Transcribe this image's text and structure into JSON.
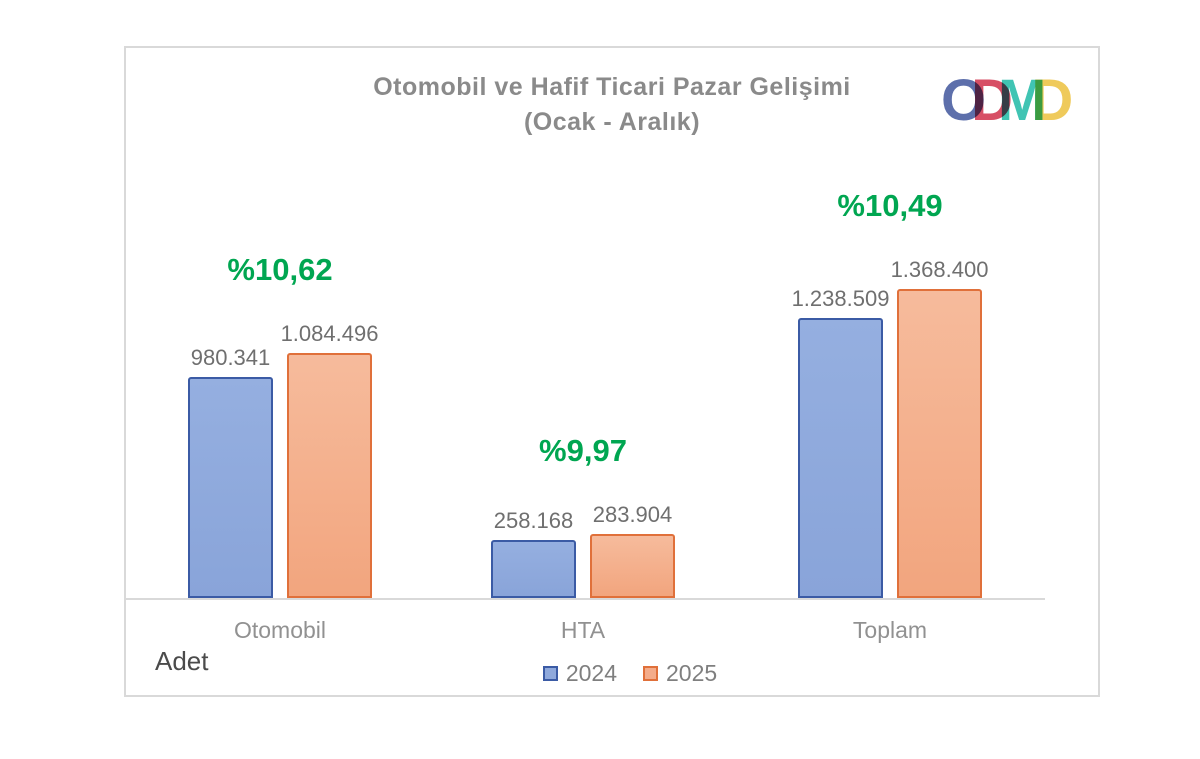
{
  "chart": {
    "title": "Otomobil ve Hafif Ticari Pazar Gelişimi",
    "subtitle": "(Ocak - Aralık)",
    "unit_label": "Adet"
  },
  "logo": {
    "name": "ODMD",
    "letters": [
      {
        "char": "O",
        "color": "#4F63A4"
      },
      {
        "char": "D",
        "color": "#D44058"
      },
      {
        "char": "M",
        "color": "#2FBFAD"
      },
      {
        "char": "D",
        "color": "#EEC64D"
      }
    ]
  },
  "chart_data": {
    "type": "bar",
    "title": "Otomobil ve Hafif Ticari Pazar Gelişimi (Ocak - Aralık)",
    "categories": [
      "Otomobil",
      "HTA",
      "Toplam"
    ],
    "series": [
      {
        "name": "2024",
        "values": [
          980341,
          258168,
          1238509
        ],
        "value_labels": [
          "980.341",
          "258.168",
          "1.238.509"
        ],
        "fill": "#8FA9DC",
        "border": "#3B5BA5"
      },
      {
        "name": "2025",
        "values": [
          1084496,
          283904,
          1368400
        ],
        "value_labels": [
          "1.084.496",
          "283.904",
          "1.368.400"
        ],
        "fill": "#F4AC8A",
        "border": "#E0703A"
      }
    ],
    "growth_labels": [
      "%10,62",
      "%9,97",
      "%10,49"
    ],
    "growth_color": "#00A651",
    "xlabel": "",
    "ylabel": "Adet",
    "ylim": [
      0,
      1500000
    ],
    "grid": false,
    "legend_position": "bottom"
  }
}
